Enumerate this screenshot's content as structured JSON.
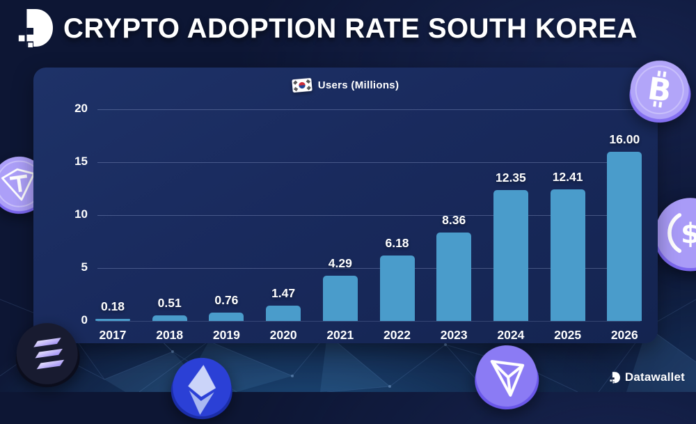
{
  "header": {
    "title": "CRYPTO ADOPTION RATE SOUTH KOREA"
  },
  "legend": {
    "flag": "south-korea-flag",
    "label": "Users (Millions)"
  },
  "chart_data": {
    "type": "bar",
    "title": "Crypto Adoption Rate South Korea",
    "legend_label": "Users (Millions)",
    "legend_position": "top-center",
    "categories": [
      "2017",
      "2018",
      "2019",
      "2020",
      "2021",
      "2022",
      "2023",
      "2024",
      "2025",
      "2026"
    ],
    "values": [
      0.18,
      0.51,
      0.76,
      1.47,
      4.29,
      6.18,
      8.36,
      12.35,
      12.41,
      16.0
    ],
    "value_labels": [
      "0.18",
      "0.51",
      "0.76",
      "1.47",
      "4.29",
      "6.18",
      "8.36",
      "12.35",
      "12.41",
      "16.00"
    ],
    "xlabel": "",
    "ylabel": "",
    "ylim": [
      0,
      20
    ],
    "yticks": [
      0,
      5,
      10,
      15,
      20
    ],
    "grid": true,
    "bar_color": "#4A9CCB"
  },
  "footer": {
    "brand": "Datawallet"
  },
  "decorations": {
    "coins": [
      "tether-coin",
      "bitcoin-coin",
      "usdc-coin",
      "solana-coin",
      "ethereum-coin",
      "tron-coin"
    ]
  },
  "colors": {
    "background": "#0D1634",
    "panel": "#1A2C60",
    "bar": "#4A9CCB",
    "text": "#FFFFFF",
    "gridline": "rgba(195,210,250,0.28)",
    "coin_purple": "#A79AF8",
    "bottom_glow": "#2A7DBE"
  }
}
